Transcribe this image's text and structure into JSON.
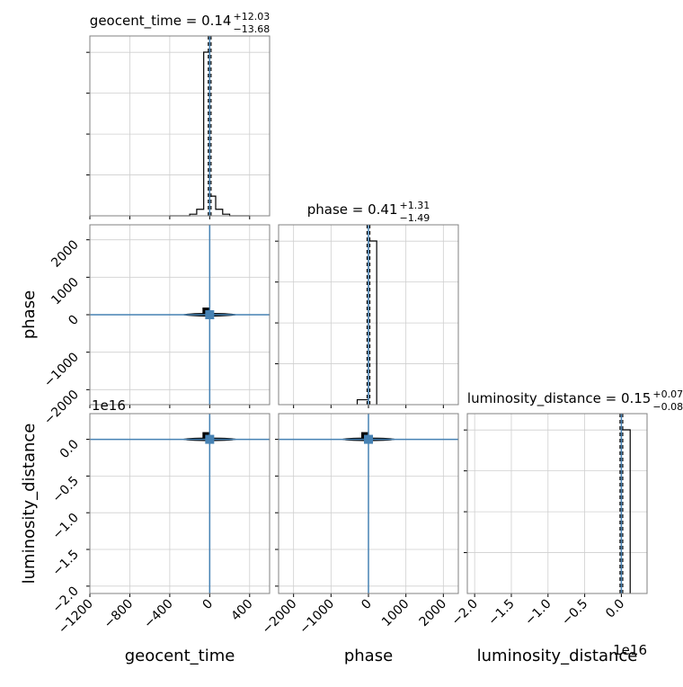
{
  "chart_data": {
    "type": "corner",
    "parameters": [
      {
        "name": "geocent_time",
        "axis_label": "geocent_time",
        "title_prefix": "geocent_time = 0.14",
        "upper": "+12.03",
        "lower": "−13.68",
        "range": [
          -1200,
          600
        ],
        "ticks": [
          -1200,
          -800,
          -400,
          0,
          400
        ],
        "tick_labels": [
          "−1200",
          "−800",
          "−400",
          "0",
          "400"
        ],
        "offset_label": "",
        "truth": 0,
        "hist": {
          "edges": [
            -400,
            -330,
            -270,
            -200,
            -130,
            -60,
            0,
            60,
            130,
            200,
            270,
            330,
            400
          ],
          "counts": [
            0,
            0,
            0,
            1,
            4,
            100,
            12,
            4,
            1,
            0,
            0,
            0
          ]
        }
      },
      {
        "name": "phase",
        "axis_label": "phase",
        "title_prefix": "phase = 0.41",
        "upper": "+1.31",
        "lower": "−1.49",
        "range": [
          -2400,
          2400
        ],
        "ticks": [
          -2000,
          -1000,
          0,
          1000,
          2000
        ],
        "tick_labels": [
          "−2000",
          "−1000",
          "0",
          "1000",
          "2000"
        ],
        "offset_label": "",
        "truth": 0,
        "hist": {
          "edges": [
            -300,
            0,
            220
          ],
          "counts": [
            3,
            100
          ]
        }
      },
      {
        "name": "luminosity_distance",
        "axis_label": "luminosity_distance",
        "title_prefix": "luminosity_distance = 0.15",
        "upper": "+0.07",
        "lower": "−0.08",
        "range": [
          -2.1,
          0.35
        ],
        "ticks": [
          -2.0,
          -1.5,
          -1.0,
          -0.5,
          0.0
        ],
        "tick_labels": [
          "−2.0",
          "−1.5",
          "−1.0",
          "−0.5",
          "0.0"
        ],
        "offset_label": "1e16",
        "truth": 0,
        "hist": {
          "edges": [
            0,
            0.12
          ],
          "counts": [
            100
          ]
        }
      }
    ],
    "truth_color": "#4682b4",
    "grid": true
  }
}
